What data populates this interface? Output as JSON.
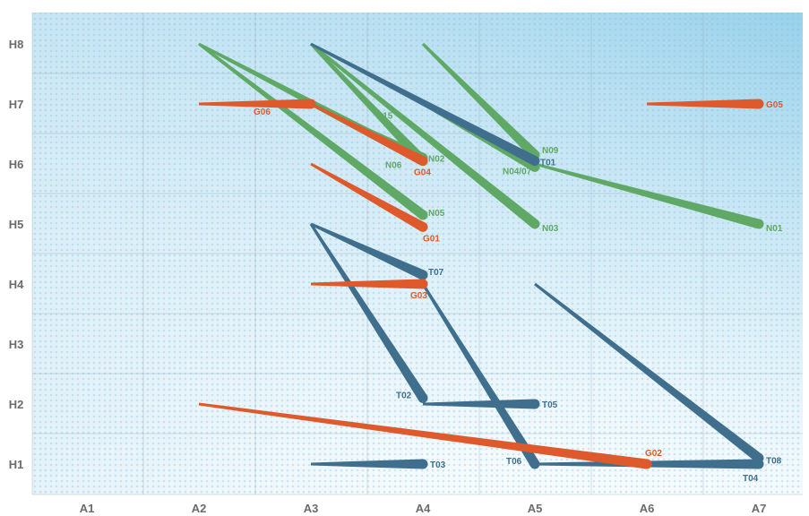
{
  "chart_data": {
    "type": "line",
    "x_categories": [
      "A1",
      "A2",
      "A3",
      "A4",
      "A5",
      "A6",
      "A7"
    ],
    "y_categories": [
      "H1",
      "H2",
      "H3",
      "H4",
      "H5",
      "H6",
      "H7",
      "H8"
    ],
    "grid": true,
    "legend": "none",
    "colors": {
      "green": "#5fa865",
      "blue": "#3f6f8c",
      "orange": "#de5a2c"
    },
    "segments": [
      {
        "label": "N05",
        "color": "green",
        "start": [
          "A2",
          8
        ],
        "end": [
          "A4",
          5.15
        ]
      },
      {
        "label": "N06",
        "color": "green",
        "start": [
          "A2",
          8
        ],
        "end": [
          "A4",
          6.05
        ]
      },
      {
        "label": "N15",
        "color": "green",
        "start": [
          "A3",
          7
        ],
        "end": [
          "A4",
          6.1
        ]
      },
      {
        "label": "N02",
        "color": "green",
        "start": [
          "A3",
          8
        ],
        "end": [
          "A4",
          6.05
        ]
      },
      {
        "label": "N03",
        "color": "green",
        "start": [
          "A3",
          8
        ],
        "end": [
          "A5",
          5.0
        ]
      },
      {
        "label": "N04/07",
        "color": "green",
        "start": [
          "A4",
          7.0
        ],
        "end": [
          "A5",
          5.95
        ]
      },
      {
        "label": "N09",
        "color": "green",
        "start": [
          "A4",
          8
        ],
        "end": [
          "A5",
          6.15
        ]
      },
      {
        "label": "N01",
        "color": "green",
        "start": [
          "A5",
          6.0
        ],
        "end": [
          "A7",
          5.0
        ]
      },
      {
        "label": "T01",
        "color": "blue",
        "start": [
          "A3",
          8
        ],
        "end": [
          "A5",
          6.05
        ]
      },
      {
        "label": "T07",
        "color": "blue",
        "start": [
          "A3",
          5.0
        ],
        "end": [
          "A4",
          4.15
        ]
      },
      {
        "label": "T02",
        "color": "blue",
        "start": [
          "A3",
          5.0
        ],
        "end": [
          "A4",
          2.1
        ]
      },
      {
        "label": "T05",
        "color": "blue",
        "start": [
          "A4",
          2.0
        ],
        "end": [
          "A5",
          2.0
        ]
      },
      {
        "label": "T06",
        "color": "blue",
        "start": [
          "A4",
          4.0
        ],
        "end": [
          "A5",
          1.0
        ]
      },
      {
        "label": "T04",
        "color": "blue",
        "start": [
          "A5",
          1.0
        ],
        "end": [
          "A7",
          1.0
        ]
      },
      {
        "label": "T08",
        "color": "blue",
        "start": [
          "A5",
          4.0
        ],
        "end": [
          "A7",
          1.1
        ]
      },
      {
        "label": "T03",
        "color": "blue",
        "start": [
          "A3",
          1.0
        ],
        "end": [
          "A4",
          1.0
        ]
      },
      {
        "label": "G06",
        "color": "orange",
        "start": [
          "A2",
          7
        ],
        "end": [
          "A3",
          7
        ]
      },
      {
        "label": "G04",
        "color": "orange",
        "start": [
          "A3",
          7
        ],
        "end": [
          "A4",
          6.05
        ]
      },
      {
        "label": "G01",
        "color": "orange",
        "start": [
          "A3",
          6.0
        ],
        "end": [
          "A4",
          4.95
        ]
      },
      {
        "label": "G03",
        "color": "orange",
        "start": [
          "A3",
          4.0
        ],
        "end": [
          "A4",
          4.0
        ]
      },
      {
        "label": "G02",
        "color": "orange",
        "start": [
          "A2",
          2.0
        ],
        "end": [
          "A6",
          1.0
        ]
      },
      {
        "label": "G05",
        "color": "orange",
        "start": [
          "A6",
          7
        ],
        "end": [
          "A7",
          7
        ]
      }
    ]
  }
}
